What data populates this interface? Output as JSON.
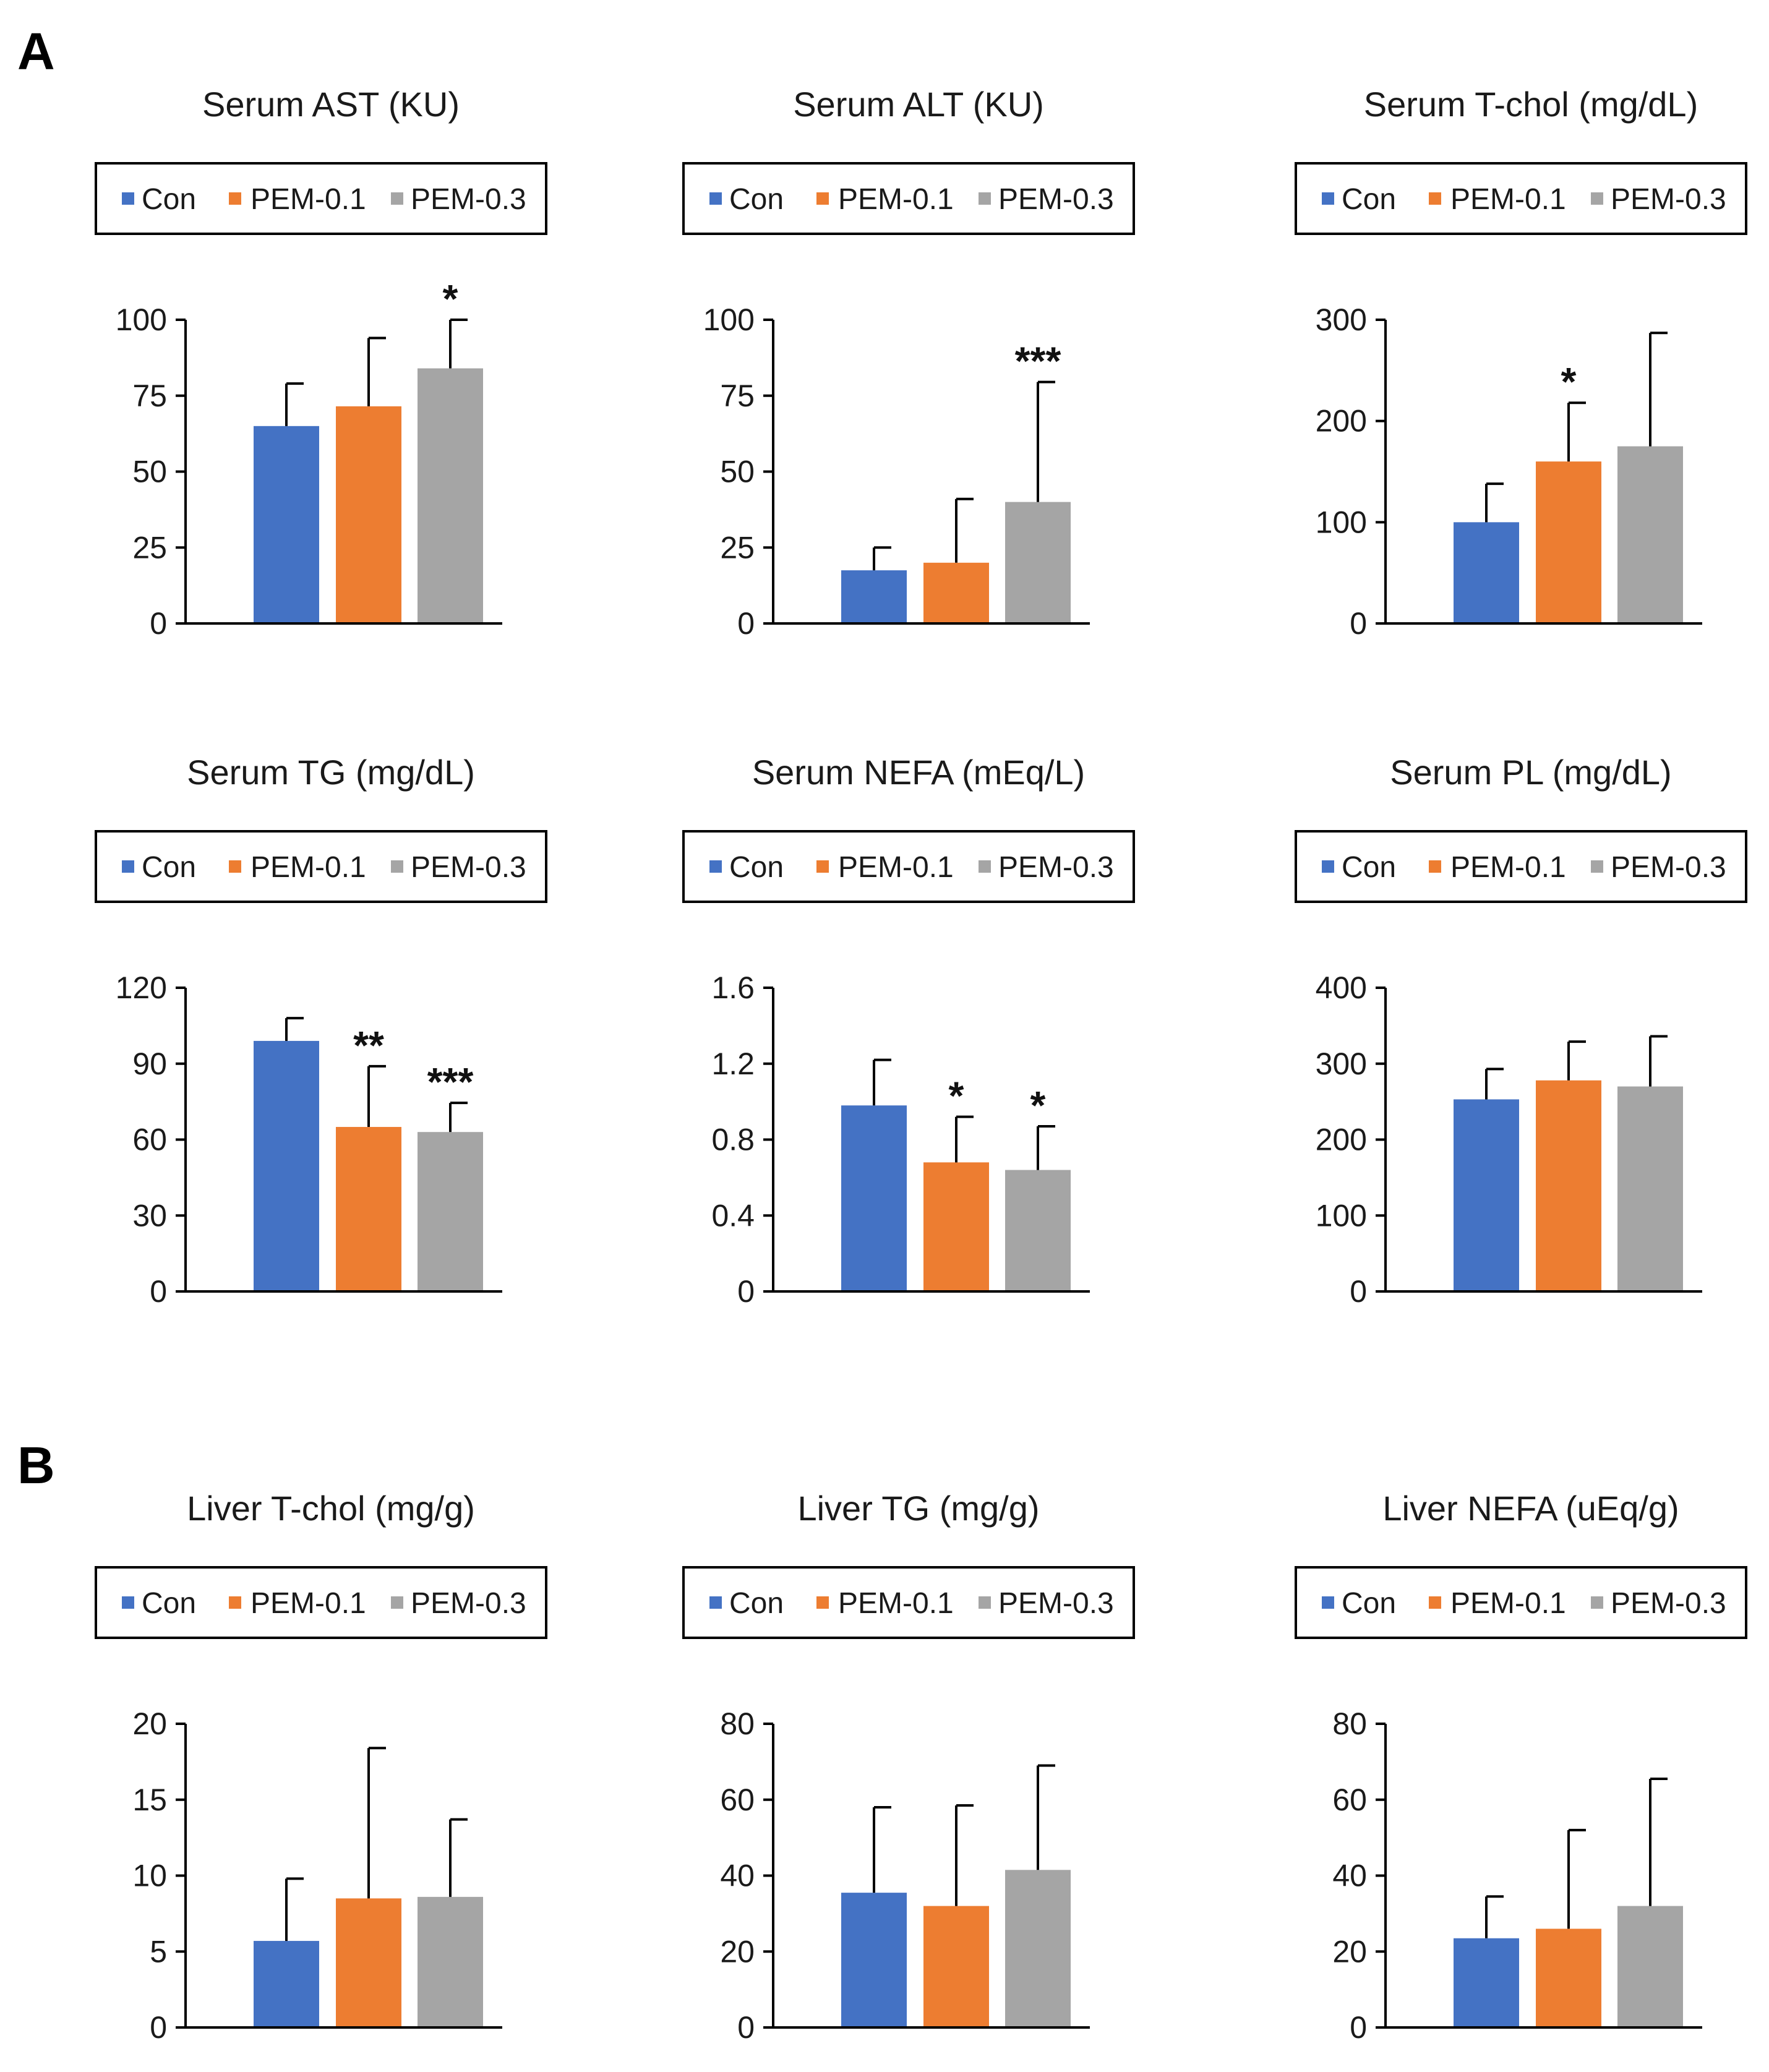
{
  "figure": {
    "panels": [
      "A",
      "B"
    ]
  },
  "legend": {
    "series": [
      {
        "name": "Con",
        "color": "#4472C4"
      },
      {
        "name": "PEM-0.1",
        "color": "#ED7D31"
      },
      {
        "name": "PEM-0.3",
        "color": "#A5A5A5"
      }
    ]
  },
  "chart_data": [
    {
      "id": "serum-ast",
      "panel": "A",
      "type": "bar",
      "title": "Serum AST (KU)",
      "categories": [
        "Con",
        "PEM-0.1",
        "PEM-0.3"
      ],
      "values": [
        65,
        71.5,
        84
      ],
      "errors": [
        14,
        22.5,
        16
      ],
      "significance": [
        "",
        "",
        "*"
      ],
      "ylim": [
        0,
        100
      ],
      "yticks": [
        "0",
        "25",
        "50",
        "75",
        "100"
      ],
      "xlabel": "",
      "ylabel": ""
    },
    {
      "id": "serum-alt",
      "panel": "A",
      "type": "bar",
      "title": "Serum ALT (KU)",
      "categories": [
        "Con",
        "PEM-0.1",
        "PEM-0.3"
      ],
      "values": [
        17.5,
        20,
        40
      ],
      "errors": [
        7.5,
        21,
        39.5
      ],
      "significance": [
        "",
        "",
        "***"
      ],
      "ylim": [
        0,
        100
      ],
      "yticks": [
        "0",
        "25",
        "50",
        "75",
        "100"
      ],
      "xlabel": "",
      "ylabel": ""
    },
    {
      "id": "serum-tchol",
      "panel": "A",
      "type": "bar",
      "title": "Serum T-chol (mg/dL)",
      "categories": [
        "Con",
        "PEM-0.1",
        "PEM-0.3"
      ],
      "values": [
        100,
        160,
        175
      ],
      "errors": [
        38,
        58,
        112
      ],
      "significance": [
        "",
        "*",
        ""
      ],
      "ylim": [
        0,
        300
      ],
      "yticks": [
        "0",
        "100",
        "200",
        "300"
      ],
      "xlabel": "",
      "ylabel": ""
    },
    {
      "id": "serum-tg",
      "panel": "A",
      "type": "bar",
      "title": "Serum TG (mg/dL)",
      "categories": [
        "Con",
        "PEM-0.1",
        "PEM-0.3"
      ],
      "values": [
        99,
        65,
        63
      ],
      "errors": [
        9,
        24,
        11.5
      ],
      "significance": [
        "",
        "**",
        "***"
      ],
      "ylim": [
        0,
        120
      ],
      "yticks": [
        "0",
        "30",
        "60",
        "90",
        "120"
      ],
      "xlabel": "",
      "ylabel": ""
    },
    {
      "id": "serum-nefa",
      "panel": "A",
      "type": "bar",
      "title": "Serum NEFA (mEq/L)",
      "categories": [
        "Con",
        "PEM-0.1",
        "PEM-0.3"
      ],
      "values": [
        0.98,
        0.68,
        0.64
      ],
      "errors": [
        0.24,
        0.24,
        0.23
      ],
      "significance": [
        "",
        "*",
        "*"
      ],
      "ylim": [
        0,
        1.6
      ],
      "yticks": [
        "0",
        "0.4",
        "0.8",
        "1.2",
        "1.6"
      ],
      "xlabel": "",
      "ylabel": ""
    },
    {
      "id": "serum-pl",
      "panel": "A",
      "type": "bar",
      "title": "Serum PL (mg/dL)",
      "categories": [
        "Con",
        "PEM-0.1",
        "PEM-0.3"
      ],
      "values": [
        253,
        278,
        270
      ],
      "errors": [
        40,
        51,
        66
      ],
      "significance": [
        "",
        "",
        ""
      ],
      "ylim": [
        0,
        400
      ],
      "yticks": [
        "0",
        "100",
        "200",
        "300",
        "400"
      ],
      "xlabel": "",
      "ylabel": ""
    },
    {
      "id": "liver-tchol",
      "panel": "B",
      "type": "bar",
      "title": "Liver T-chol (mg/g)",
      "categories": [
        "Con",
        "PEM-0.1",
        "PEM-0.3"
      ],
      "values": [
        5.7,
        8.5,
        8.6
      ],
      "errors": [
        4.1,
        9.9,
        5.1
      ],
      "significance": [
        "",
        "",
        ""
      ],
      "ylim": [
        0,
        20
      ],
      "yticks": [
        "0",
        "5",
        "10",
        "15",
        "20"
      ],
      "xlabel": "",
      "ylabel": ""
    },
    {
      "id": "liver-tg",
      "panel": "B",
      "type": "bar",
      "title": "Liver TG (mg/g)",
      "categories": [
        "Con",
        "PEM-0.1",
        "PEM-0.3"
      ],
      "values": [
        35.5,
        32,
        41.5
      ],
      "errors": [
        22.5,
        26.5,
        27.5
      ],
      "significance": [
        "",
        "",
        ""
      ],
      "ylim": [
        0,
        80
      ],
      "yticks": [
        "0",
        "20",
        "40",
        "60",
        "80"
      ],
      "xlabel": "",
      "ylabel": ""
    },
    {
      "id": "liver-nefa",
      "panel": "B",
      "type": "bar",
      "title": "Liver NEFA (uEq/g)",
      "categories": [
        "Con",
        "PEM-0.1",
        "PEM-0.3"
      ],
      "values": [
        23.5,
        26,
        32
      ],
      "errors": [
        11,
        26,
        33.5
      ],
      "significance": [
        "",
        "",
        ""
      ],
      "ylim": [
        0,
        80
      ],
      "yticks": [
        "0",
        "20",
        "40",
        "60",
        "80"
      ],
      "xlabel": "",
      "ylabel": ""
    }
  ]
}
